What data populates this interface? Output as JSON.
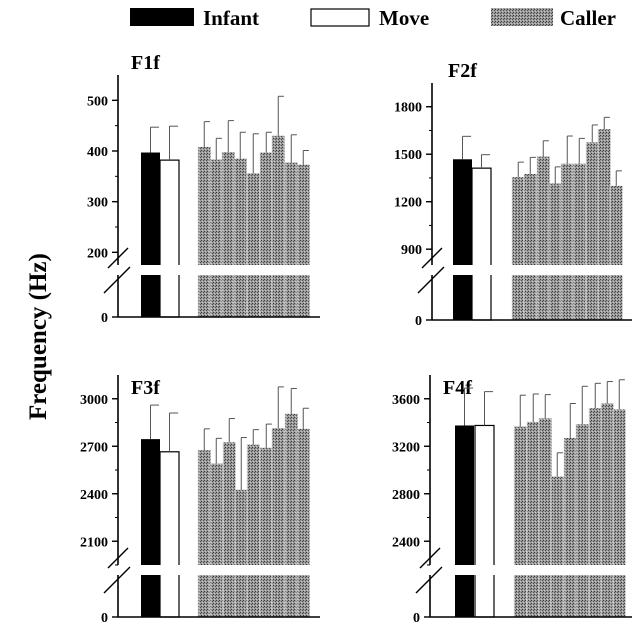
{
  "legend": [
    {
      "label": "Infant",
      "color": "#000000",
      "style": "solid"
    },
    {
      "label": "Move",
      "color": "#ffffff",
      "style": "outline"
    },
    {
      "label": "Caller",
      "color": "#8a8a8a",
      "style": "stipple"
    }
  ],
  "ylabel": "Frequency (Hz)",
  "chart_data": [
    {
      "type": "bar",
      "title": "F1f",
      "yticks": [
        0,
        200,
        300,
        400,
        500
      ],
      "ylim_upper": [
        175,
        550
      ],
      "axis_break": true,
      "infant": {
        "value": 397,
        "error": 50
      },
      "move": {
        "value": 382,
        "error": 67
      },
      "caller": {
        "values": [
          408,
          383,
          398,
          385,
          356,
          397,
          430,
          377,
          373
        ],
        "errors": [
          50,
          42,
          62,
          52,
          78,
          40,
          78,
          55,
          28
        ]
      }
    },
    {
      "type": "bar",
      "title": "F2f",
      "yticks": [
        0,
        900,
        1200,
        1500,
        1800
      ],
      "ylim_upper": [
        800,
        1950
      ],
      "axis_break": true,
      "infant": {
        "value": 1468,
        "error": 145
      },
      "move": {
        "value": 1412,
        "error": 85
      },
      "caller": {
        "values": [
          1355,
          1375,
          1485,
          1315,
          1440,
          1440,
          1575,
          1658,
          1300
        ],
        "errors": [
          95,
          105,
          100,
          105,
          175,
          160,
          110,
          75,
          95
        ]
      }
    },
    {
      "type": "bar",
      "title": "F3f",
      "yticks": [
        0,
        2100,
        2400,
        2700,
        3000
      ],
      "ylim_upper": [
        1950,
        3150
      ],
      "axis_break": true,
      "infant": {
        "value": 2745,
        "error": 215
      },
      "move": {
        "value": 2665,
        "error": 245
      },
      "caller": {
        "values": [
          2675,
          2590,
          2725,
          2425,
          2710,
          2690,
          2815,
          2905,
          2810
        ],
        "errors": [
          135,
          160,
          150,
          330,
          95,
          150,
          260,
          160,
          130
        ]
      }
    },
    {
      "type": "bar",
      "title": "F4f",
      "yticks": [
        0,
        2400,
        2800,
        3200,
        3600
      ],
      "ylim_upper": [
        2200,
        3800
      ],
      "axis_break": true,
      "infant": {
        "value": 3375,
        "error": 315
      },
      "move": {
        "value": 3375,
        "error": 285
      },
      "caller": {
        "values": [
          3365,
          3405,
          3435,
          2945,
          3270,
          3385,
          3520,
          3560,
          3510
        ],
        "errors": [
          265,
          235,
          200,
          200,
          290,
          320,
          210,
          185,
          250
        ]
      }
    }
  ]
}
